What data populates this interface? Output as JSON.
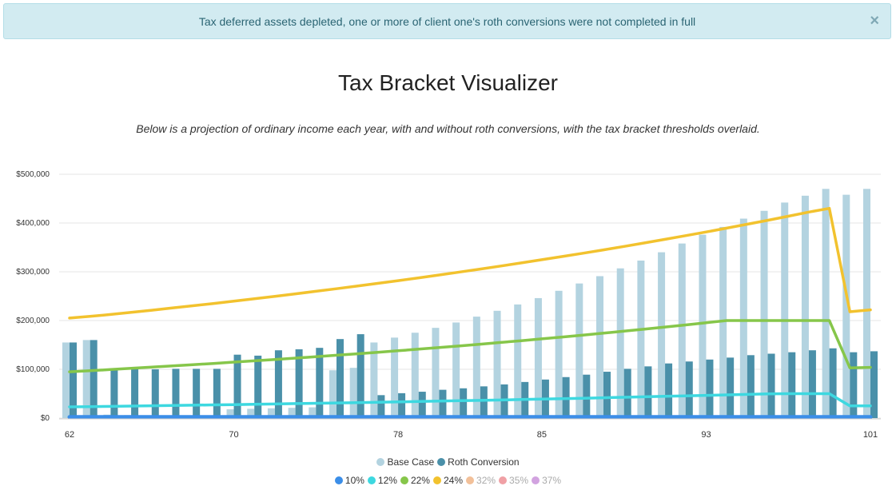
{
  "alert": {
    "message": "Tax deferred assets depleted, one or more of client one's roth conversions were not completed in full",
    "close_symbol": "×"
  },
  "title": "Tax Bracket Visualizer",
  "subtitle": "Below is a projection of ordinary income each year, with and without roth conversions, with the tax bracket thresholds overlaid.",
  "chart_data": {
    "type": "bar",
    "x_start_age": 62,
    "x_end_age": 101,
    "x_tick_labels": [
      "62",
      "70",
      "78",
      "85",
      "93",
      "101"
    ],
    "y_tick_labels": [
      "$0",
      "$100,000",
      "$200,000",
      "$300,000",
      "$400,000",
      "$500,000"
    ],
    "ylim": [
      0,
      500000
    ],
    "series": [
      {
        "name": "Base Case",
        "color": "#b3d3e0",
        "values": [
          155000,
          160000,
          7000,
          6000,
          5000,
          5000,
          5000,
          5000,
          18000,
          19000,
          20000,
          21000,
          22000,
          98000,
          103000,
          155000,
          165000,
          175000,
          185000,
          196000,
          208000,
          220000,
          233000,
          246000,
          261000,
          276000,
          291000,
          307000,
          323000,
          340000,
          358000,
          376000,
          392000,
          409000,
          425000,
          442000,
          456000,
          470000,
          458000,
          470000
        ]
      },
      {
        "name": "Roth Conversion",
        "color": "#4a90a9",
        "values": [
          155000,
          160000,
          100000,
          102000,
          100000,
          101000,
          101000,
          101000,
          130000,
          128000,
          139000,
          141000,
          144000,
          162000,
          172000,
          47000,
          51000,
          54000,
          58000,
          61000,
          65000,
          69000,
          74000,
          79000,
          84000,
          89000,
          95000,
          101000,
          106000,
          112000,
          116000,
          120000,
          124000,
          129000,
          132000,
          135000,
          139000,
          143000,
          135000,
          137000
        ]
      }
    ],
    "brackets": [
      {
        "name": "10%",
        "color": "#3b8ee8",
        "active": true,
        "values": [
          2000,
          2000,
          2000,
          2000,
          2000,
          2000,
          2000,
          2000,
          2000,
          2000,
          2000,
          2000,
          2000,
          2000,
          2000,
          2000,
          2000,
          2000,
          2000,
          2000,
          2000,
          2000,
          2000,
          2000,
          2000,
          2000,
          2000,
          2000,
          2000,
          2000,
          2000,
          2000,
          2000,
          2000,
          2000,
          2000,
          2000,
          2000,
          2000,
          2000
        ]
      },
      {
        "name": "12%",
        "color": "#3dd8e0",
        "active": true,
        "values": [
          23000,
          23500,
          24000,
          24600,
          25200,
          25800,
          26400,
          27000,
          27600,
          28200,
          28900,
          29600,
          30300,
          31000,
          31700,
          32400,
          33100,
          33900,
          34700,
          35500,
          36300,
          37100,
          38000,
          38900,
          39800,
          40700,
          41600,
          42600,
          43600,
          44600,
          45600,
          46600,
          47600,
          48600,
          49600,
          50000,
          50000,
          50000,
          25000,
          25000
        ]
      },
      {
        "name": "22%",
        "color": "#86c64a",
        "active": true,
        "values": [
          95000,
          97000,
          99500,
          102000,
          104500,
          107000,
          109500,
          112000,
          114700,
          117400,
          120200,
          123000,
          125900,
          128800,
          131800,
          134900,
          138000,
          141300,
          144600,
          148000,
          151500,
          155000,
          158700,
          162400,
          166200,
          170100,
          174100,
          178200,
          182400,
          186700,
          191000,
          195500,
          200000,
          200000,
          200000,
          200000,
          200000,
          200000,
          103000,
          104000
        ]
      },
      {
        "name": "24%",
        "color": "#f2c22e",
        "active": true,
        "values": [
          205000,
          208500,
          212500,
          216800,
          221200,
          225700,
          230300,
          235000,
          239800,
          244700,
          249700,
          254800,
          260000,
          265300,
          270700,
          276200,
          281800,
          287600,
          293500,
          299500,
          305600,
          311800,
          318200,
          324700,
          331300,
          338100,
          345000,
          352000,
          359200,
          366600,
          374100,
          381700,
          389500,
          397500,
          405600,
          413900,
          422400,
          430000,
          218000,
          222000
        ]
      },
      {
        "name": "32%",
        "color": "#f2c099",
        "active": false,
        "values": []
      },
      {
        "name": "35%",
        "color": "#f0a0a5",
        "active": false,
        "values": []
      },
      {
        "name": "37%",
        "color": "#d2a3e0",
        "active": false,
        "values": []
      }
    ]
  }
}
